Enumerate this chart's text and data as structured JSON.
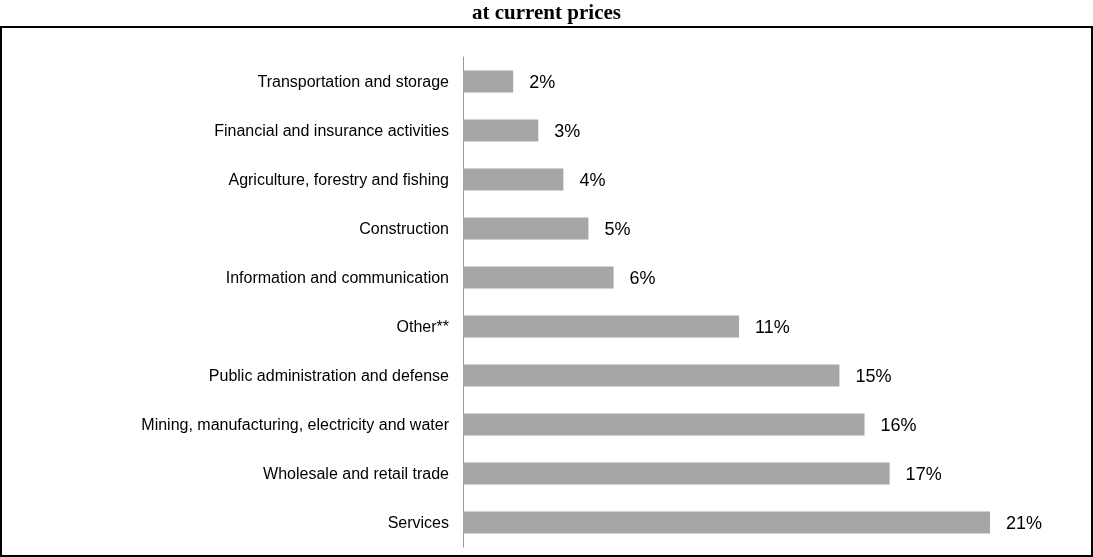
{
  "chart_data": {
    "type": "bar",
    "orientation": "horizontal",
    "title": "at current prices",
    "categories": [
      "Transportation and storage",
      "Financial and insurance activities",
      "Agriculture, forestry and fishing",
      "Construction",
      "Information and communication",
      "Other**",
      "Public administration and defense",
      "Mining, manufacturing, electricity and water",
      "Wholesale and retail trade",
      "Services"
    ],
    "values": [
      2,
      3,
      4,
      5,
      6,
      11,
      15,
      16,
      17,
      21
    ],
    "value_labels": [
      "2%",
      "3%",
      "4%",
      "5%",
      "6%",
      "11%",
      "15%",
      "16%",
      "17%",
      "21%"
    ],
    "color": "#a6a6a6",
    "grid": false
  }
}
